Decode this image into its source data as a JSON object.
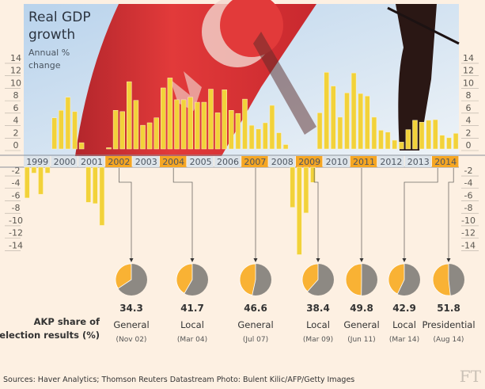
{
  "chart_data": {
    "type": "bar",
    "title": "Real GDP growth",
    "subtitle": "Annual % change",
    "ylabel": "Annual % change",
    "ylim": [
      -14,
      14
    ],
    "yticks": [
      14,
      12,
      10,
      8,
      6,
      4,
      2,
      0,
      -2,
      -4,
      -6,
      -8,
      -10,
      -12,
      -14
    ],
    "years": [
      "1999",
      "2000",
      "2001",
      "2002",
      "2003",
      "2004",
      "2005",
      "2006",
      "2007",
      "2008",
      "2009",
      "2010",
      "2011",
      "2012",
      "2013",
      "2014"
    ],
    "highlight_years": [
      "2002",
      "2004",
      "2007",
      "2009",
      "2011",
      "2014"
    ],
    "quarterly_values": [
      -5.8,
      -1.8,
      -5.2,
      -1.8,
      5.0,
      6.2,
      8.3,
      6.0,
      1.0,
      -6.5,
      -6.7,
      -10.2,
      0.2,
      6.2,
      6.0,
      10.8,
      7.8,
      3.8,
      4.2,
      5.0,
      9.8,
      11.4,
      7.9,
      7.9,
      8.3,
      7.5,
      7.5,
      9.6,
      5.8,
      9.5,
      6.2,
      5.7,
      8.0,
      3.8,
      3.2,
      4.2,
      7.0,
      2.6,
      0.7,
      -7.3,
      -14.9,
      -8.2,
      -3.3,
      5.8,
      12.3,
      10.1,
      5.1,
      9.0,
      12.2,
      8.9,
      8.5,
      5.1,
      3.0,
      2.7,
      1.4,
      1.1,
      3.1,
      4.6,
      4.3,
      4.6,
      4.7,
      2.2,
      1.8,
      2.5
    ],
    "colors": {
      "bar": "#f2d23a",
      "highlight": "#f5a623",
      "band": "#dde4ea",
      "akp": "#f9b234",
      "other": "#8d8983"
    },
    "elections": {
      "label": "AKP share of election results (%)",
      "label_lines": [
        "AKP share of",
        "election results (%)"
      ],
      "items": [
        {
          "value": 34.3,
          "value_label": "34.3",
          "type": "General",
          "date": "(Nov 02)",
          "year": "2002"
        },
        {
          "value": 41.7,
          "value_label": "41.7",
          "type": "Local",
          "date": "(Mar 04)",
          "year": "2004"
        },
        {
          "value": 46.6,
          "value_label": "46.6",
          "type": "General",
          "date": "(Jul 07)",
          "year": "2007"
        },
        {
          "value": 38.4,
          "value_label": "38.4",
          "type": "Local",
          "date": "(Mar 09)",
          "year": "2009"
        },
        {
          "value": 49.8,
          "value_label": "49.8",
          "type": "General",
          "date": "(Jun 11)",
          "year": "2011"
        },
        {
          "value": 42.9,
          "value_label": "42.9",
          "type": "Local",
          "date": "(Mar 14)",
          "year": "2014"
        },
        {
          "value": 51.8,
          "value_label": "51.8",
          "type": "Presidential",
          "date": "(Aug 14)",
          "year": "2014"
        }
      ]
    }
  },
  "footer": {
    "sources": "Sources: Haver Analytics; Thomson Reuters Datastream   Photo: Bulent Kilic/AFP/Getty Images",
    "logo": "FT"
  }
}
